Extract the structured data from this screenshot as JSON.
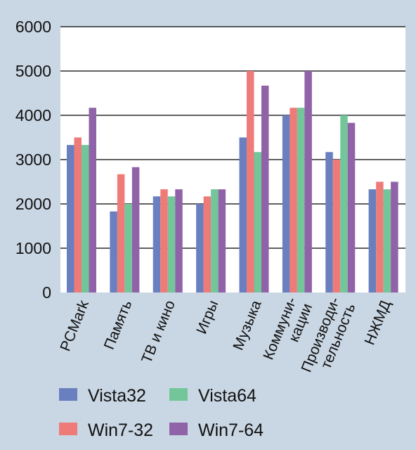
{
  "chart_data": {
    "type": "bar",
    "categories": [
      [
        "PCMark"
      ],
      [
        "Память"
      ],
      [
        "ТВ и кино"
      ],
      [
        "Игры"
      ],
      [
        "Музыка"
      ],
      [
        "Коммуни-",
        "кации"
      ],
      [
        "Производи-",
        "тельность"
      ],
      [
        "НЖМД"
      ]
    ],
    "series": [
      {
        "name": "Vista32",
        "color": "#6a7fbf",
        "values": [
          3330,
          1830,
          2170,
          2000,
          3500,
          4000,
          3170,
          2330
        ]
      },
      {
        "name": "Win7-32",
        "color": "#ef7b78",
        "values": [
          3500,
          2670,
          2330,
          2170,
          5000,
          4170,
          3000,
          2500
        ]
      },
      {
        "name": "Vista64",
        "color": "#72c69a",
        "values": [
          3330,
          2000,
          2170,
          2330,
          3170,
          4170,
          4000,
          2330
        ]
      },
      {
        "name": "Win7-64",
        "color": "#9063a8",
        "values": [
          4170,
          2830,
          2330,
          2330,
          4670,
          5000,
          3830,
          2500
        ]
      }
    ],
    "yticks": [
      "0",
      "1000",
      "2000",
      "3000",
      "4000",
      "5000",
      "6000"
    ],
    "ylim": [
      0,
      6000
    ],
    "grid": true,
    "legend_position": "bottom",
    "legend_order": [
      [
        "Vista32",
        "Vista64"
      ],
      [
        "Win7-32",
        "Win7-64"
      ]
    ],
    "title": "",
    "xlabel": "",
    "ylabel": ""
  }
}
